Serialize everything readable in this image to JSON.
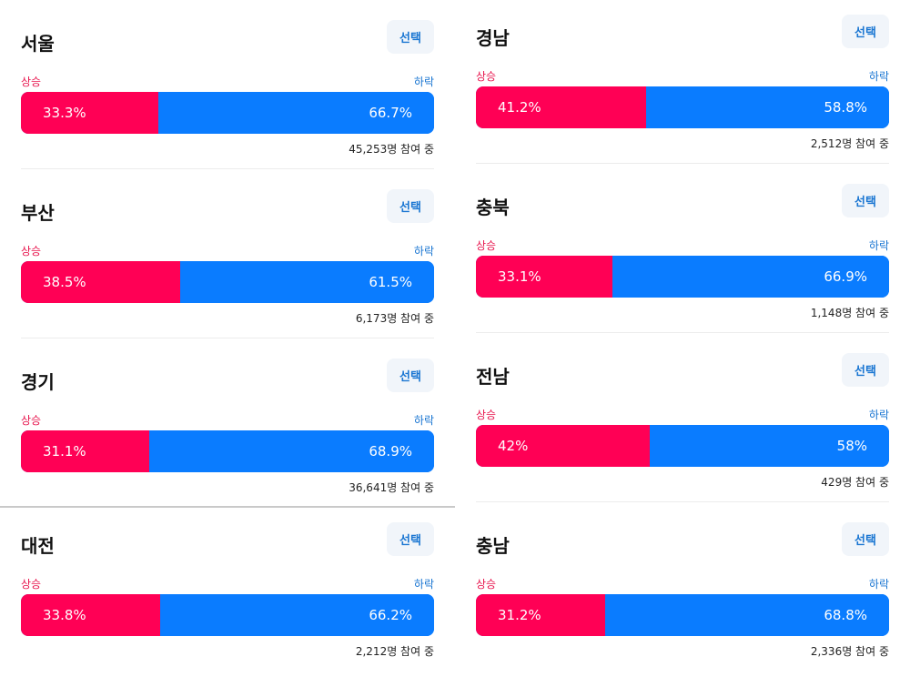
{
  "select_label": "선택",
  "up_label": "상승",
  "down_label": "하락",
  "colors": {
    "up": "#ff0055",
    "down": "#0a7cff",
    "button_text": "#1a76d2"
  },
  "regions_left": [
    {
      "name": "서울",
      "up_pct": "33.3%",
      "down_pct": "66.7%",
      "up_share": 33.3,
      "participants": "45,253명 참여 중"
    },
    {
      "name": "부산",
      "up_pct": "38.5%",
      "down_pct": "61.5%",
      "up_share": 38.5,
      "participants": "6,173명 참여 중"
    },
    {
      "name": "경기",
      "up_pct": "31.1%",
      "down_pct": "68.9%",
      "up_share": 31.1,
      "participants": "36,641명 참여 중"
    },
    {
      "name": "대전",
      "up_pct": "33.8%",
      "down_pct": "66.2%",
      "up_share": 33.8,
      "participants": "2,212명 참여 중"
    }
  ],
  "regions_right": [
    {
      "name": "경남",
      "up_pct": "41.2%",
      "down_pct": "58.8%",
      "up_share": 41.2,
      "participants": "2,512명 참여 중"
    },
    {
      "name": "충북",
      "up_pct": "33.1%",
      "down_pct": "66.9%",
      "up_share": 33.1,
      "participants": "1,148명 참여 중"
    },
    {
      "name": "전남",
      "up_pct": "42%",
      "down_pct": "58%",
      "up_share": 42,
      "participants": "429명 참여 중"
    },
    {
      "name": "충남",
      "up_pct": "31.2%",
      "down_pct": "68.8%",
      "up_share": 31.2,
      "participants": "2,336명 참여 중"
    }
  ]
}
